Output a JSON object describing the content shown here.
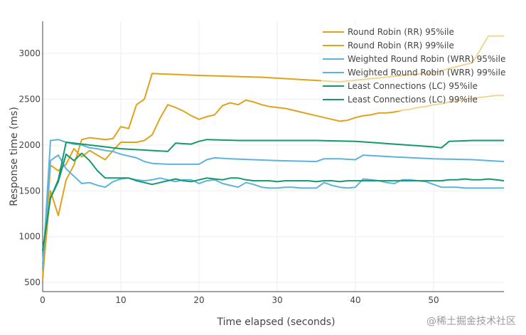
{
  "watermark": "@稀土掘金技术社区",
  "chart_data": {
    "type": "line",
    "title": "",
    "xlabel": "Time elapsed (seconds)",
    "ylabel": "Response time (ms)",
    "xlim": [
      0,
      59
    ],
    "ylim": [
      400,
      3350
    ],
    "xticks": [
      0,
      10,
      20,
      30,
      40,
      50
    ],
    "yticks": [
      500,
      1000,
      1500,
      2000,
      2500,
      3000
    ],
    "grid": true,
    "legend_position": "top-right",
    "series": [
      {
        "name": "Round Robin (RR) 95%ile",
        "color": "#E0A21A",
        "points": [
          [
            0,
            520
          ],
          [
            1,
            1780
          ],
          [
            2,
            1720
          ],
          [
            3,
            1790
          ],
          [
            4,
            1960
          ],
          [
            5,
            1870
          ],
          [
            6,
            1940
          ],
          [
            7,
            1890
          ],
          [
            8,
            1840
          ],
          [
            9,
            1940
          ],
          [
            10,
            2030
          ],
          [
            11,
            2030
          ],
          [
            12,
            2030
          ],
          [
            13,
            2050
          ],
          [
            14,
            2110
          ],
          [
            15,
            2290
          ],
          [
            16,
            2440
          ],
          [
            17,
            2410
          ],
          [
            18,
            2370
          ],
          [
            19,
            2320
          ],
          [
            20,
            2280
          ],
          [
            21,
            2310
          ],
          [
            22,
            2330
          ],
          [
            23,
            2430
          ],
          [
            24,
            2460
          ],
          [
            25,
            2440
          ],
          [
            26,
            2490
          ],
          [
            27,
            2470
          ],
          [
            28,
            2440
          ],
          [
            29,
            2420
          ],
          [
            30,
            2410
          ],
          [
            31,
            2400
          ],
          [
            32,
            2380
          ],
          [
            33,
            2360
          ],
          [
            34,
            2340
          ],
          [
            35,
            2320
          ],
          [
            36,
            2300
          ],
          [
            37,
            2280
          ],
          [
            38,
            2260
          ],
          [
            39,
            2270
          ],
          [
            40,
            2300
          ],
          [
            41,
            2320
          ],
          [
            42,
            2330
          ],
          [
            43,
            2350
          ],
          [
            44,
            2350
          ],
          [
            45,
            2360
          ],
          [
            46,
            2380
          ],
          [
            47,
            2390
          ],
          [
            48,
            2410
          ],
          [
            49,
            2420
          ],
          [
            50,
            2440
          ],
          [
            51,
            2450
          ],
          [
            52,
            2470
          ],
          [
            53,
            2480
          ],
          [
            54,
            2500
          ],
          [
            55,
            2510
          ],
          [
            56,
            2520
          ],
          [
            57,
            2530
          ],
          [
            58,
            2540
          ],
          [
            59,
            2540
          ]
        ]
      },
      {
        "name": "Round Robin (RR) 99%ile",
        "color": "#E0A21A",
        "points": [
          [
            0,
            560
          ],
          [
            1,
            1500
          ],
          [
            2,
            1230
          ],
          [
            3,
            1620
          ],
          [
            4,
            1780
          ],
          [
            5,
            2060
          ],
          [
            6,
            2080
          ],
          [
            7,
            2070
          ],
          [
            8,
            2060
          ],
          [
            9,
            2070
          ],
          [
            10,
            2200
          ],
          [
            11,
            2180
          ],
          [
            12,
            2440
          ],
          [
            13,
            2500
          ],
          [
            14,
            2780
          ],
          [
            20,
            2760
          ],
          [
            28,
            2740
          ],
          [
            38,
            2690
          ],
          [
            45,
            2750
          ],
          [
            50,
            2790
          ],
          [
            55,
            2900
          ],
          [
            57,
            3190
          ],
          [
            59,
            3190
          ]
        ]
      },
      {
        "name": "Weighted Round Robin (WRR) 95%ile",
        "color": "#5DB2E0",
        "points": [
          [
            0,
            650
          ],
          [
            1,
            2050
          ],
          [
            2,
            2060
          ],
          [
            3,
            2030
          ],
          [
            4,
            2010
          ],
          [
            5,
            2000
          ],
          [
            6,
            1970
          ],
          [
            7,
            1960
          ],
          [
            8,
            1940
          ],
          [
            9,
            1930
          ],
          [
            10,
            1900
          ],
          [
            11,
            1880
          ],
          [
            12,
            1860
          ],
          [
            13,
            1820
          ],
          [
            14,
            1800
          ],
          [
            16,
            1790
          ],
          [
            20,
            1790
          ],
          [
            21,
            1840
          ],
          [
            22,
            1860
          ],
          [
            24,
            1850
          ],
          [
            30,
            1830
          ],
          [
            35,
            1820
          ],
          [
            36,
            1850
          ],
          [
            38,
            1850
          ],
          [
            40,
            1840
          ],
          [
            41,
            1890
          ],
          [
            45,
            1870
          ],
          [
            50,
            1850
          ],
          [
            55,
            1840
          ],
          [
            59,
            1820
          ]
        ]
      },
      {
        "name": "Weighted Round Robin (WRR) 99%ile",
        "color": "#5DB2E0",
        "points": [
          [
            0,
            700
          ],
          [
            1,
            1830
          ],
          [
            2,
            1890
          ],
          [
            3,
            1740
          ],
          [
            4,
            1660
          ],
          [
            5,
            1580
          ],
          [
            6,
            1590
          ],
          [
            7,
            1560
          ],
          [
            8,
            1540
          ],
          [
            9,
            1600
          ],
          [
            10,
            1630
          ],
          [
            11,
            1640
          ],
          [
            12,
            1620
          ],
          [
            13,
            1610
          ],
          [
            14,
            1620
          ],
          [
            15,
            1640
          ],
          [
            16,
            1620
          ],
          [
            17,
            1600
          ],
          [
            18,
            1620
          ],
          [
            19,
            1620
          ],
          [
            20,
            1580
          ],
          [
            21,
            1610
          ],
          [
            22,
            1620
          ],
          [
            23,
            1580
          ],
          [
            24,
            1560
          ],
          [
            25,
            1540
          ],
          [
            26,
            1590
          ],
          [
            27,
            1570
          ],
          [
            28,
            1540
          ],
          [
            29,
            1530
          ],
          [
            30,
            1530
          ],
          [
            31,
            1540
          ],
          [
            32,
            1540
          ],
          [
            33,
            1530
          ],
          [
            34,
            1530
          ],
          [
            35,
            1530
          ],
          [
            36,
            1590
          ],
          [
            37,
            1560
          ],
          [
            38,
            1540
          ],
          [
            39,
            1530
          ],
          [
            40,
            1540
          ],
          [
            41,
            1630
          ],
          [
            42,
            1620
          ],
          [
            43,
            1610
          ],
          [
            44,
            1590
          ],
          [
            45,
            1580
          ],
          [
            46,
            1620
          ],
          [
            47,
            1620
          ],
          [
            48,
            1610
          ],
          [
            49,
            1600
          ],
          [
            50,
            1570
          ],
          [
            51,
            1540
          ],
          [
            52,
            1540
          ],
          [
            53,
            1540
          ],
          [
            54,
            1530
          ],
          [
            55,
            1530
          ],
          [
            56,
            1530
          ],
          [
            57,
            1530
          ],
          [
            58,
            1530
          ],
          [
            59,
            1530
          ]
        ]
      },
      {
        "name": "Least Connections (LC) 95%ile",
        "color": "#15996B",
        "points": [
          [
            0,
            850
          ],
          [
            1,
            1420
          ],
          [
            2,
            1620
          ],
          [
            3,
            2030
          ],
          [
            4,
            2020
          ],
          [
            6,
            2000
          ],
          [
            8,
            1980
          ],
          [
            10,
            1960
          ],
          [
            14,
            1940
          ],
          [
            16,
            1930
          ],
          [
            17,
            2020
          ],
          [
            19,
            2010
          ],
          [
            20,
            2040
          ],
          [
            21,
            2060
          ],
          [
            25,
            2050
          ],
          [
            30,
            2050
          ],
          [
            35,
            2050
          ],
          [
            40,
            2040
          ],
          [
            45,
            2010
          ],
          [
            50,
            1980
          ],
          [
            51,
            1970
          ],
          [
            52,
            2040
          ],
          [
            55,
            2050
          ],
          [
            59,
            2050
          ]
        ]
      },
      {
        "name": "Least Connections (LC) 99%ile",
        "color": "#15996B",
        "points": [
          [
            0,
            850
          ],
          [
            1,
            1420
          ],
          [
            2,
            1600
          ],
          [
            3,
            1900
          ],
          [
            4,
            1830
          ],
          [
            5,
            1910
          ],
          [
            6,
            1830
          ],
          [
            7,
            1720
          ],
          [
            8,
            1640
          ],
          [
            9,
            1640
          ],
          [
            10,
            1640
          ],
          [
            11,
            1640
          ],
          [
            12,
            1610
          ],
          [
            13,
            1590
          ],
          [
            14,
            1570
          ],
          [
            15,
            1590
          ],
          [
            16,
            1610
          ],
          [
            17,
            1630
          ],
          [
            18,
            1610
          ],
          [
            19,
            1600
          ],
          [
            20,
            1620
          ],
          [
            21,
            1640
          ],
          [
            22,
            1630
          ],
          [
            23,
            1620
          ],
          [
            24,
            1640
          ],
          [
            25,
            1640
          ],
          [
            26,
            1620
          ],
          [
            27,
            1610
          ],
          [
            28,
            1610
          ],
          [
            29,
            1610
          ],
          [
            30,
            1600
          ],
          [
            31,
            1610
          ],
          [
            32,
            1610
          ],
          [
            33,
            1610
          ],
          [
            34,
            1610
          ],
          [
            35,
            1600
          ],
          [
            36,
            1610
          ],
          [
            37,
            1610
          ],
          [
            38,
            1600
          ],
          [
            39,
            1610
          ],
          [
            40,
            1610
          ],
          [
            41,
            1610
          ],
          [
            42,
            1610
          ],
          [
            43,
            1610
          ],
          [
            44,
            1610
          ],
          [
            45,
            1610
          ],
          [
            46,
            1610
          ],
          [
            47,
            1610
          ],
          [
            48,
            1610
          ],
          [
            49,
            1610
          ],
          [
            50,
            1610
          ],
          [
            51,
            1610
          ],
          [
            52,
            1620
          ],
          [
            53,
            1620
          ],
          [
            54,
            1630
          ],
          [
            55,
            1620
          ],
          [
            56,
            1620
          ],
          [
            57,
            1630
          ],
          [
            58,
            1620
          ],
          [
            59,
            1610
          ]
        ]
      }
    ]
  }
}
